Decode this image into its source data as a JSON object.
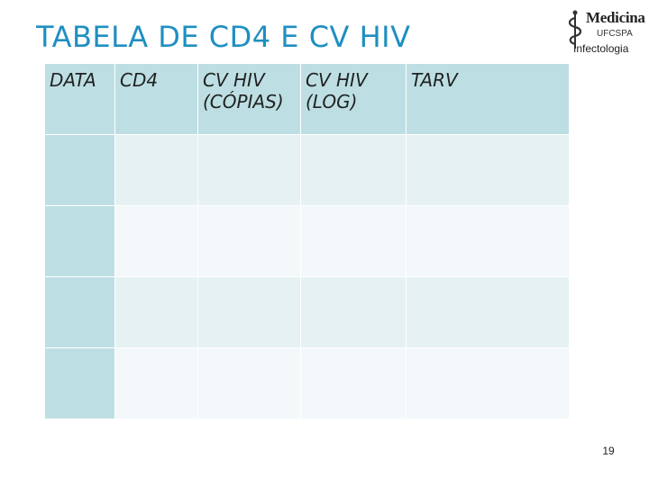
{
  "slide": {
    "title": "TABELA DE CD4 E CV HIV",
    "page_number": "19"
  },
  "logo": {
    "name": "Medicina",
    "institution": "UFCSPA",
    "department": "Infectologia",
    "icon": "caduceus-icon"
  },
  "table": {
    "headers": [
      "DATA",
      "CD4",
      "CV HIV\n(CÓPIAS)",
      "CV HIV\n(LOG)",
      "TARV"
    ],
    "rows": [
      [
        "",
        "",
        "",
        "",
        ""
      ],
      [
        "",
        "",
        "",
        "",
        ""
      ],
      [
        "",
        "",
        "",
        "",
        ""
      ],
      [
        "",
        "",
        "",
        "",
        ""
      ]
    ]
  },
  "colors": {
    "title": "#1f8fc0",
    "header_fill": "#bddfe3",
    "row_fill_odd": "#e6f1f3",
    "row_fill_even": "#f3f8fa"
  }
}
